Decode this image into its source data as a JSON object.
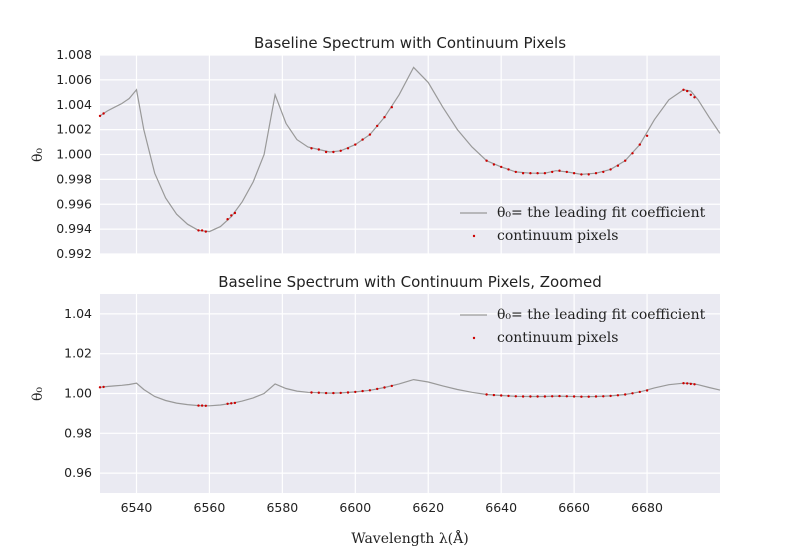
{
  "chart_data": [
    {
      "type": "line",
      "title": "Baseline Spectrum with Continuum Pixels",
      "ylabel": "θ₀",
      "xlabel": "",
      "xlim": [
        6530,
        6700
      ],
      "ylim": [
        0.992,
        1.008
      ],
      "yticks": [
        0.992,
        0.994,
        0.996,
        0.998,
        1.0,
        1.002,
        1.004,
        1.006,
        1.008
      ],
      "ytick_labels": [
        "0.992",
        "0.994",
        "0.996",
        "0.998",
        "1.000",
        "1.002",
        "1.004",
        "1.006",
        "1.008"
      ],
      "xticks": [
        6540,
        6560,
        6580,
        6600,
        6620,
        6640,
        6660,
        6680
      ],
      "xtick_labels_shown": false,
      "grid": true,
      "legend": "lower-right",
      "legend_entries": [
        "θ₀= the leading fit coefficient",
        "continuum pixels"
      ],
      "series": [
        {
          "name": "θ₀= the leading fit coefficient",
          "color": "#999999",
          "x": [
            6530,
            6532,
            6534,
            6536,
            6538,
            6540,
            6542,
            6545,
            6548,
            6551,
            6554,
            6557,
            6560,
            6563,
            6566,
            6569,
            6572,
            6575,
            6578,
            6581,
            6584,
            6587,
            6590,
            6593,
            6596,
            6600,
            6604,
            6608,
            6612,
            6616,
            6620,
            6624,
            6628,
            6632,
            6636,
            6640,
            6644,
            6648,
            6652,
            6655,
            6658,
            6662,
            6666,
            6670,
            6674,
            6678,
            6682,
            6686,
            6690,
            6692,
            6694,
            6697,
            6700
          ],
          "y": [
            1.0031,
            1.0035,
            1.0038,
            1.0041,
            1.0045,
            1.0052,
            1.002,
            0.9985,
            0.9965,
            0.9952,
            0.9944,
            0.9939,
            0.9938,
            0.9942,
            0.995,
            0.9962,
            0.9978,
            1.0,
            1.0048,
            1.0025,
            1.0012,
            1.0006,
            1.0004,
            1.0002,
            1.0003,
            1.0008,
            1.0016,
            1.003,
            1.0048,
            1.007,
            1.0058,
            1.0038,
            1.002,
            1.0006,
            0.9995,
            0.999,
            0.9986,
            0.9985,
            0.9985,
            0.9987,
            0.9986,
            0.9984,
            0.9985,
            0.9988,
            0.9995,
            1.0008,
            1.0028,
            1.0044,
            1.0052,
            1.0051,
            1.0044,
            1.003,
            1.0017
          ]
        },
        {
          "name": "continuum pixels",
          "color": "#cc0000",
          "x": [
            6530,
            6531,
            6557,
            6558,
            6559,
            6565,
            6566,
            6567,
            6588,
            6590,
            6592,
            6594,
            6596,
            6598,
            6600,
            6602,
            6604,
            6606,
            6608,
            6610,
            6636,
            6638,
            6640,
            6642,
            6644,
            6646,
            6648,
            6650,
            6652,
            6654,
            6656,
            6658,
            6660,
            6662,
            6664,
            6666,
            6668,
            6670,
            6672,
            6674,
            6676,
            6678,
            6680,
            6690,
            6691,
            6692,
            6693
          ],
          "y": [
            1.0031,
            1.0033,
            0.9939,
            0.9939,
            0.9938,
            0.9948,
            0.9951,
            0.9953,
            1.0005,
            1.0004,
            1.0002,
            1.0002,
            1.0003,
            1.0005,
            1.0008,
            1.0012,
            1.0016,
            1.0023,
            1.003,
            1.0038,
            0.9995,
            0.9992,
            0.999,
            0.9988,
            0.9986,
            0.9985,
            0.9985,
            0.9985,
            0.9985,
            0.9986,
            0.9987,
            0.9986,
            0.9985,
            0.9984,
            0.9984,
            0.9985,
            0.9986,
            0.9988,
            0.9991,
            0.9995,
            1.0001,
            1.0008,
            1.0015,
            1.0052,
            1.0051,
            1.0048,
            1.0046
          ]
        }
      ]
    },
    {
      "type": "line",
      "title": "Baseline Spectrum with Continuum Pixels, Zoomed",
      "ylabel": "θ₀",
      "xlabel": "Wavelength λ(Å)",
      "xlim": [
        6530,
        6700
      ],
      "ylim": [
        0.95,
        1.05
      ],
      "yticks": [
        0.96,
        0.98,
        1.0,
        1.02,
        1.04
      ],
      "ytick_labels": [
        "0.96",
        "0.98",
        "1.00",
        "1.02",
        "1.04"
      ],
      "xticks": [
        6540,
        6560,
        6580,
        6600,
        6620,
        6640,
        6660,
        6680
      ],
      "xtick_labels": [
        "6540",
        "6560",
        "6580",
        "6600",
        "6620",
        "6640",
        "6660",
        "6680"
      ],
      "grid": true,
      "legend": "upper-right",
      "legend_entries": [
        "θ₀= the leading fit coefficient",
        "continuum pixels"
      ],
      "series_same_as_panel": 0
    }
  ]
}
